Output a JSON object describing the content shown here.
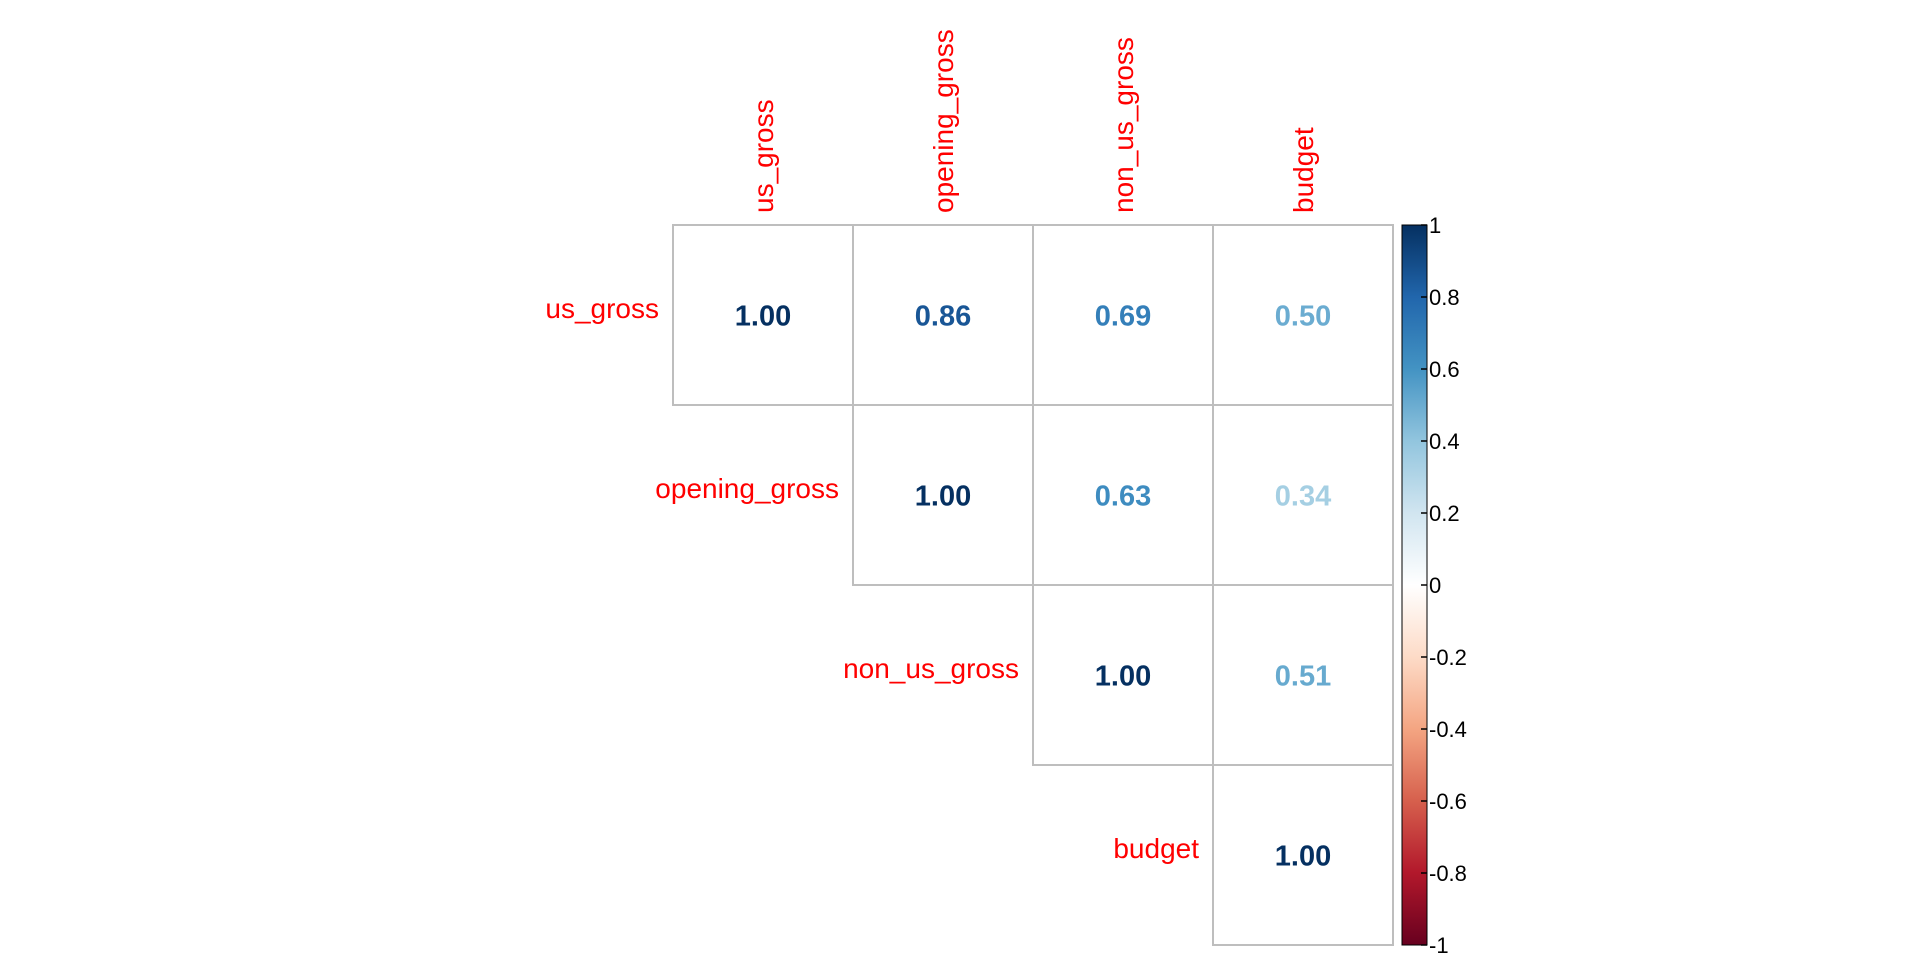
{
  "chart_data": {
    "type": "heatmap",
    "variant": "upper-triangle correlation matrix",
    "variables": [
      "us_gross",
      "opening_gross",
      "non_us_gross",
      "budget"
    ],
    "matrix": [
      [
        1.0,
        0.86,
        0.69,
        0.5
      ],
      [
        0.86,
        1.0,
        0.63,
        0.34
      ],
      [
        0.69,
        0.63,
        1.0,
        0.51
      ],
      [
        0.5,
        0.34,
        0.51,
        1.0
      ]
    ],
    "value_format": "2 decimals",
    "color_scale": {
      "range": [
        -1,
        1
      ],
      "ticks": [
        "1",
        "0.8",
        "0.6",
        "0.4",
        "0.2",
        "0",
        "-0.2",
        "-0.4",
        "-0.6",
        "-0.8",
        "-1"
      ],
      "stops": [
        {
          "v": -1.0,
          "c": "#67001f"
        },
        {
          "v": -0.8,
          "c": "#b2182b"
        },
        {
          "v": -0.6,
          "c": "#d6604d"
        },
        {
          "v": -0.4,
          "c": "#f4a582"
        },
        {
          "v": -0.2,
          "c": "#fddbc7"
        },
        {
          "v": 0.0,
          "c": "#ffffff"
        },
        {
          "v": 0.2,
          "c": "#d1e5f0"
        },
        {
          "v": 0.4,
          "c": "#92c5de"
        },
        {
          "v": 0.6,
          "c": "#4393c3"
        },
        {
          "v": 0.8,
          "c": "#2166ac"
        },
        {
          "v": 1.0,
          "c": "#053061"
        }
      ]
    },
    "label_color": "#ff0000",
    "grid_color": "#bebebe",
    "title": "",
    "legend": "right"
  }
}
